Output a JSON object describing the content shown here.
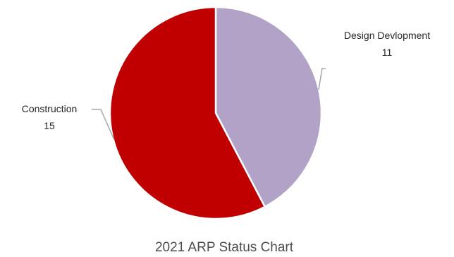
{
  "chart_data": {
    "type": "pie",
    "title": "2021 ARP Status Chart",
    "slices": [
      {
        "label": "Design Devlopment",
        "value": 11,
        "color": "#b3a2c7"
      },
      {
        "label": "Construction",
        "value": 15,
        "color": "#c00000"
      }
    ],
    "legend": "none",
    "data_labels": "outside with leader lines"
  }
}
